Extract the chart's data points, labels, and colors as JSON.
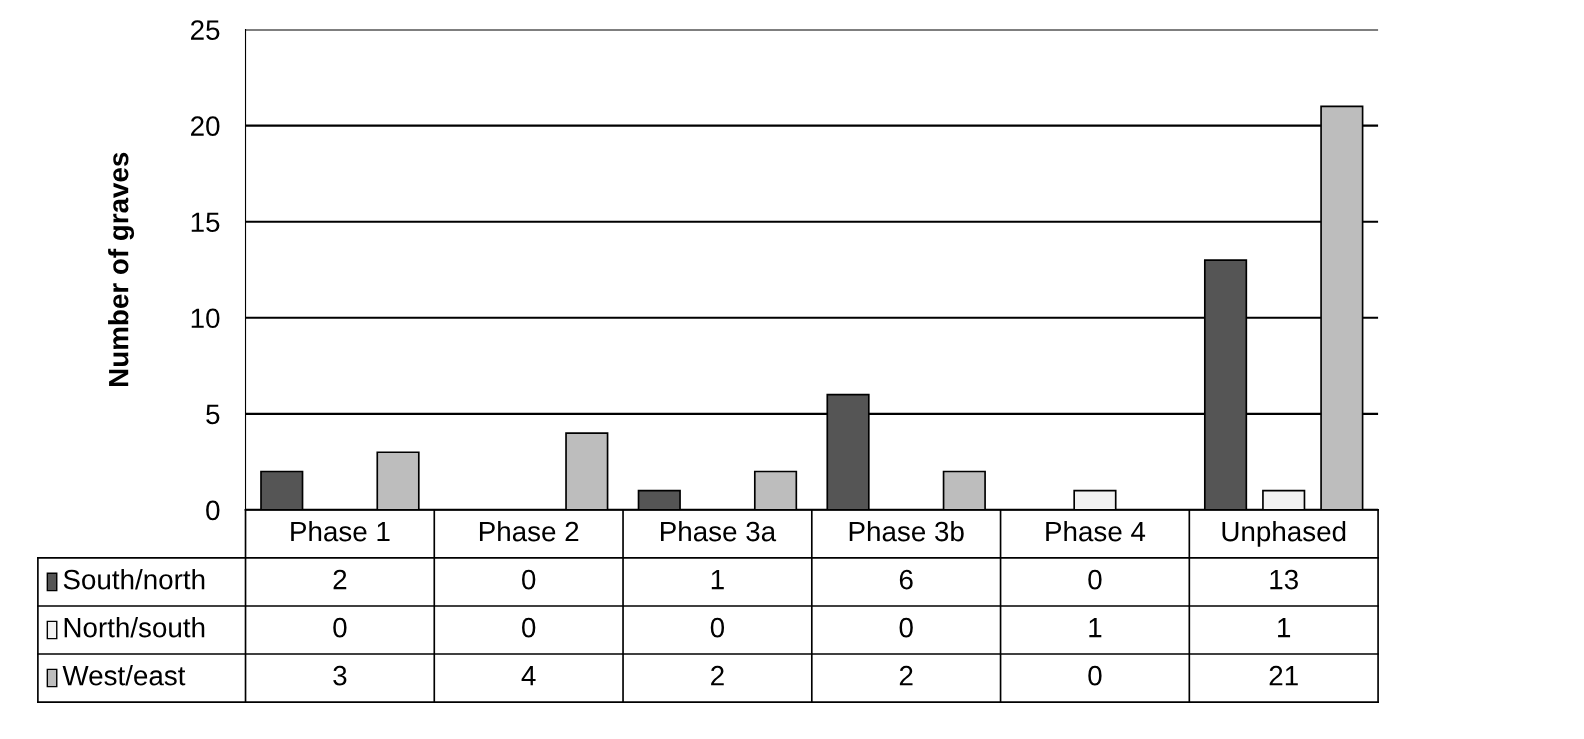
{
  "chart_data": {
    "type": "bar",
    "ylabel": "Number of graves",
    "categories": [
      "Phase 1",
      "Phase 2",
      "Phase 3a",
      "Phase 3b",
      "Phase 4",
      "Unphased"
    ],
    "series": [
      {
        "name": "South/north",
        "color": "#555555",
        "values": [
          2,
          0,
          1,
          6,
          0,
          13
        ]
      },
      {
        "name": "North/south",
        "color": "#f2f2f2",
        "values": [
          0,
          0,
          0,
          0,
          1,
          1
        ]
      },
      {
        "name": "West/east",
        "color": "#bdbdbd",
        "values": [
          3,
          4,
          2,
          2,
          0,
          21
        ]
      }
    ],
    "ylim": [
      0,
      25
    ],
    "yticks": [
      0,
      5,
      10,
      15,
      20,
      25
    ],
    "grid": "y",
    "data_labels": true,
    "legend": "bottom"
  }
}
